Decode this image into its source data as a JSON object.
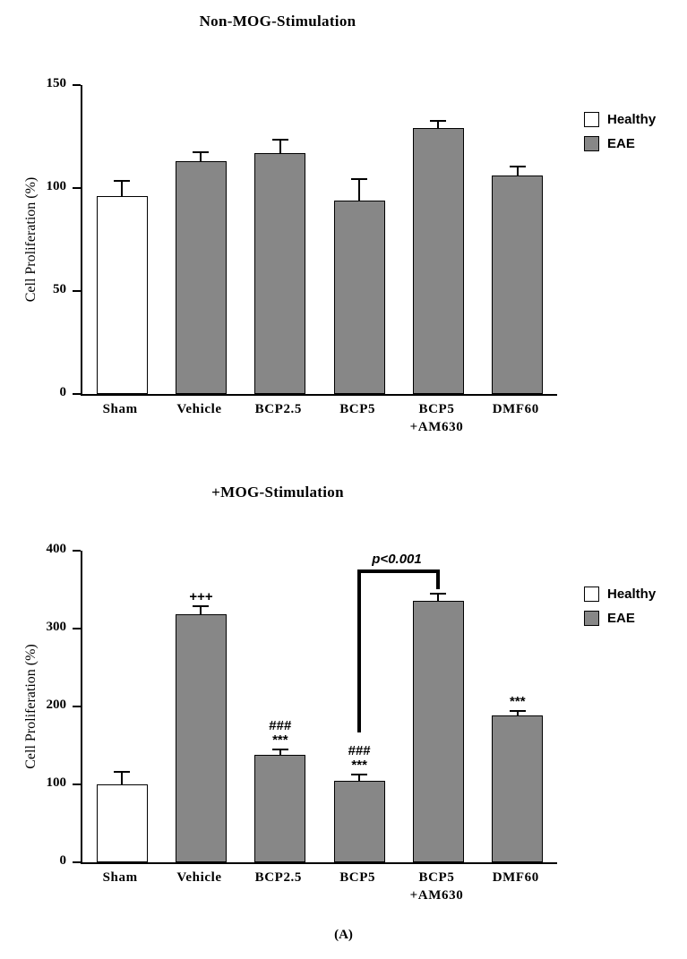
{
  "caption": "(A)",
  "chart_data": [
    {
      "type": "bar",
      "title": "Non-MOG-Stimulation",
      "ylabel": "Cell Proliferation (%)",
      "ylim": [
        0,
        150
      ],
      "yticks": [
        0,
        50,
        100,
        150
      ],
      "categories": [
        "Sham",
        "Vehicle",
        "BCP2.5",
        "BCP5",
        "BCP5\n+AM630",
        "DMF60"
      ],
      "values": [
        96,
        113,
        117,
        94,
        129,
        106
      ],
      "errors": [
        7,
        4,
        6,
        10,
        3,
        4
      ],
      "groups": [
        "Healthy",
        "EAE",
        "EAE",
        "EAE",
        "EAE",
        "EAE"
      ],
      "annotations": [
        "",
        "",
        "",
        "",
        "",
        ""
      ],
      "legend": [
        {
          "label": "Healthy",
          "color": "#ffffff"
        },
        {
          "label": "EAE",
          "color": "#878787"
        }
      ],
      "legend_position": "right",
      "grid": false
    },
    {
      "type": "bar",
      "title": "+MOG-Stimulation",
      "ylabel": "Cell Proliferation (%)",
      "ylim": [
        0,
        400
      ],
      "yticks": [
        0,
        100,
        200,
        300,
        400
      ],
      "categories": [
        "Sham",
        "Vehicle",
        "BCP2.5",
        "BCP5",
        "BCP5\n+AM630",
        "DMF60"
      ],
      "values": [
        100,
        318,
        138,
        105,
        336,
        188
      ],
      "errors": [
        15,
        10,
        6,
        7,
        8,
        5
      ],
      "groups": [
        "Healthy",
        "EAE",
        "EAE",
        "EAE",
        "EAE",
        "EAE"
      ],
      "annotations": [
        "",
        "+++",
        "###\n***",
        "###\n***",
        "",
        "***"
      ],
      "comparison_bracket": {
        "from": "BCP5",
        "to": "BCP5\n+AM630",
        "from_index": 3,
        "to_index": 4,
        "label": "p<0.001"
      },
      "legend": [
        {
          "label": "Healthy",
          "color": "#ffffff"
        },
        {
          "label": "EAE",
          "color": "#878787"
        }
      ],
      "legend_position": "right",
      "grid": false
    }
  ]
}
